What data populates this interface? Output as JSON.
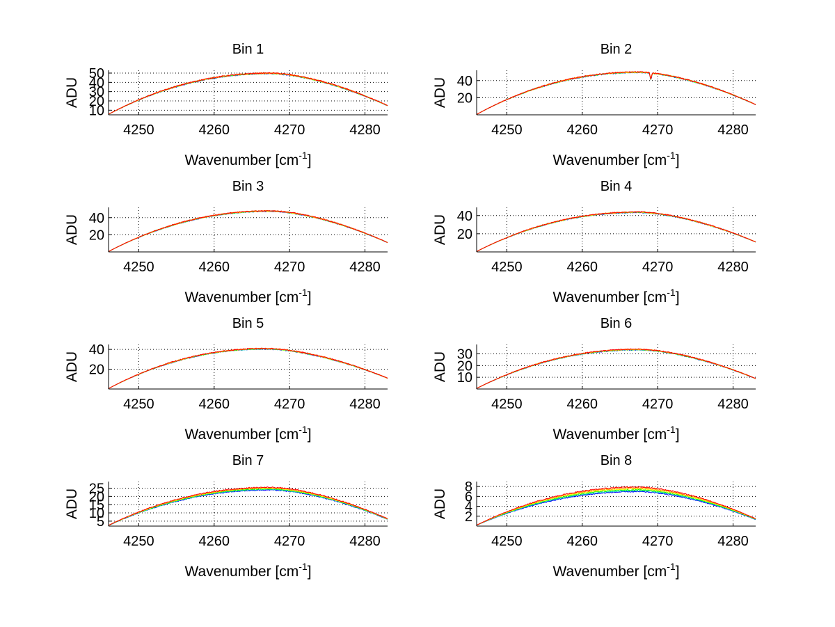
{
  "colors": {
    "background": "#ffffff",
    "axes": "#000000",
    "grid": "#000000",
    "series": [
      "#0000ff",
      "#00bfbf",
      "#00ff00",
      "#ffff00",
      "#ff8000",
      "#ff0000"
    ]
  },
  "chart_data": [
    {
      "type": "line",
      "title": "Bin 1",
      "xlabel": "Wavenumber [cm-1]",
      "ylabel": "ADU",
      "xlim": [
        4246,
        4283
      ],
      "ylim": [
        5,
        53
      ],
      "xticks": [
        "4250",
        "4260",
        "4270",
        "4280"
      ],
      "yticks": [
        "10",
        "20",
        "30",
        "40",
        "50"
      ],
      "profile": {
        "start": 5.6,
        "peak": 50,
        "peak_x": 4267.5,
        "end": 15
      },
      "series_spread": 0.6,
      "dip": null,
      "grid": true
    },
    {
      "type": "line",
      "title": "Bin 2",
      "xlabel": "Wavenumber [cm-1]",
      "ylabel": "ADU",
      "xlim": [
        4246,
        4283
      ],
      "ylim": [
        0,
        52
      ],
      "xticks": [
        "4250",
        "4260",
        "4270",
        "4280"
      ],
      "yticks": [
        "20",
        "40"
      ],
      "profile": {
        "start": 0.5,
        "peak": 50,
        "peak_x": 4267.5,
        "end": 12
      },
      "series_spread": 0.6,
      "dip": {
        "x": 4269.1,
        "depth": 8
      },
      "grid": true
    },
    {
      "type": "line",
      "title": "Bin 3",
      "xlabel": "Wavenumber [cm-1]",
      "ylabel": "ADU",
      "xlim": [
        4246,
        4283
      ],
      "ylim": [
        0,
        52
      ],
      "xticks": [
        "4250",
        "4260",
        "4270",
        "4280"
      ],
      "yticks": [
        "20",
        "40"
      ],
      "profile": {
        "start": 0.5,
        "peak": 48,
        "peak_x": 4267.5,
        "end": 11
      },
      "series_spread": 0.6,
      "dip": null,
      "grid": true
    },
    {
      "type": "line",
      "title": "Bin 4",
      "xlabel": "Wavenumber [cm-1]",
      "ylabel": "ADU",
      "xlim": [
        4246,
        4283
      ],
      "ylim": [
        0,
        49
      ],
      "xticks": [
        "4250",
        "4260",
        "4270",
        "4280"
      ],
      "yticks": [
        "20",
        "40"
      ],
      "profile": {
        "start": 0.5,
        "peak": 44,
        "peak_x": 4267.5,
        "end": 11
      },
      "series_spread": 0.6,
      "dip": null,
      "grid": true
    },
    {
      "type": "line",
      "title": "Bin 5",
      "xlabel": "Wavenumber [cm-1]",
      "ylabel": "ADU",
      "xlim": [
        4246,
        4283
      ],
      "ylim": [
        0,
        45
      ],
      "xticks": [
        "4250",
        "4260",
        "4270",
        "4280"
      ],
      "yticks": [
        "20",
        "40"
      ],
      "profile": {
        "start": 0.5,
        "peak": 41,
        "peak_x": 4267,
        "end": 11
      },
      "series_spread": 0.6,
      "dip": null,
      "grid": true
    },
    {
      "type": "line",
      "title": "Bin 6",
      "xlabel": "Wavenumber [cm-1]",
      "ylabel": "ADU",
      "xlim": [
        4246,
        4283
      ],
      "ylim": [
        0,
        38
      ],
      "xticks": [
        "4250",
        "4260",
        "4270",
        "4280"
      ],
      "yticks": [
        "10",
        "20",
        "30"
      ],
      "profile": {
        "start": 0.5,
        "peak": 34,
        "peak_x": 4267.5,
        "end": 9
      },
      "series_spread": 0.6,
      "dip": null,
      "grid": true
    },
    {
      "type": "line",
      "title": "Bin 7",
      "xlabel": "Wavenumber [cm-1]",
      "ylabel": "ADU",
      "xlim": [
        4246,
        4283
      ],
      "ylim": [
        2,
        29
      ],
      "xticks": [
        "4250",
        "4260",
        "4270",
        "4280"
      ],
      "yticks": [
        "5",
        "10",
        "15",
        "20",
        "25"
      ],
      "profile": {
        "start": 2.5,
        "peak": 25.5,
        "peak_x": 4267.5,
        "end": 6.5
      },
      "series_spread": 1.6,
      "dip": null,
      "grid": true
    },
    {
      "type": "line",
      "title": "Bin 8",
      "xlabel": "Wavenumber [cm-1]",
      "ylabel": "ADU",
      "xlim": [
        4246,
        4283
      ],
      "ylim": [
        0,
        9
      ],
      "xticks": [
        "4250",
        "4260",
        "4270",
        "4280"
      ],
      "yticks": [
        "2",
        "4",
        "6",
        "8"
      ],
      "profile": {
        "start": 0.2,
        "peak": 7.9,
        "peak_x": 4267.5,
        "end": 1.5
      },
      "series_spread": 0.95,
      "dip": null,
      "grid": true
    }
  ]
}
